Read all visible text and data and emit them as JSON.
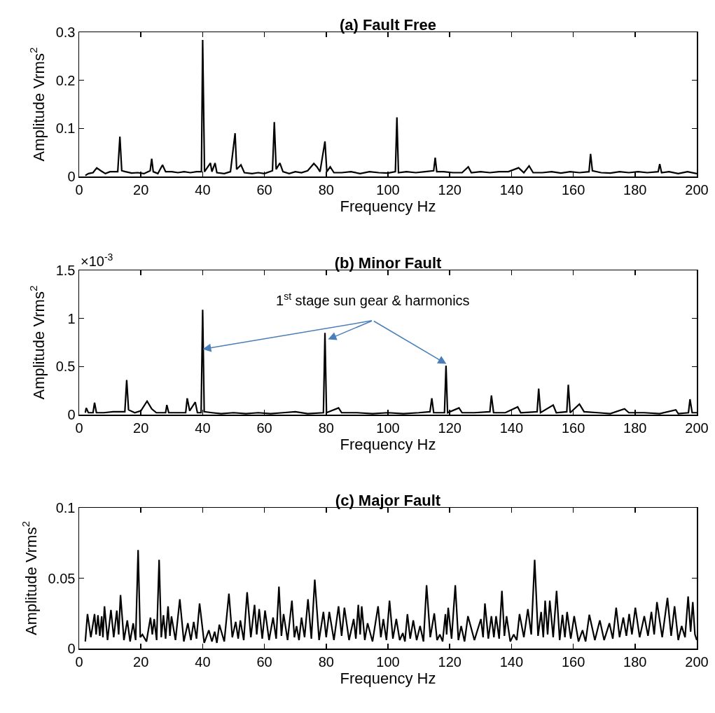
{
  "chart_data": [
    {
      "type": "line",
      "title": "(a) Fault Free",
      "xlabel": "Frequency Hz",
      "ylabel": "Amplitude Vrms$^{2}$",
      "xlim": [
        0,
        200
      ],
      "xticks": [
        0,
        20,
        40,
        60,
        80,
        100,
        120,
        140,
        160,
        180,
        200
      ],
      "ylim": [
        0,
        0.3
      ],
      "yticks": [
        0,
        0.1,
        0.2,
        0.3
      ],
      "series": [
        {
          "color": "#000000",
          "x": [
            2,
            3,
            4.5,
            5.7,
            7,
            8.5,
            10,
            12.5,
            13.2,
            13.8,
            15,
            17,
            19,
            21,
            23,
            23.5,
            24,
            25.5,
            27,
            28,
            30,
            32,
            34,
            36,
            38,
            39.6,
            40,
            40.6,
            42.5,
            43,
            44,
            44.6,
            47,
            49,
            50.5,
            51,
            52.4,
            53.5,
            56,
            58,
            60,
            62.6,
            63.2,
            63.8,
            65,
            66,
            68,
            70,
            72,
            74,
            76,
            77,
            78,
            79.6,
            80.2,
            81.3,
            82.5,
            85,
            88,
            91,
            94,
            97,
            100,
            102.4,
            102.9,
            103.4,
            106,
            109,
            112,
            114.8,
            115.3,
            115.8,
            118,
            121,
            124,
            126,
            127,
            130,
            133,
            136,
            139,
            142.3,
            144,
            145.7,
            147,
            150,
            153,
            156,
            159,
            162,
            165.1,
            165.6,
            166.2,
            169,
            172,
            175,
            178,
            181,
            184,
            187.5,
            188,
            188.6,
            191,
            194,
            197,
            200
          ],
          "values": [
            0.002,
            0.006,
            0.008,
            0.018,
            0.012,
            0.006,
            0.01,
            0.01,
            0.083,
            0.012,
            0.01,
            0.007,
            0.008,
            0.006,
            0.012,
            0.037,
            0.01,
            0.006,
            0.024,
            0.01,
            0.01,
            0.008,
            0.01,
            0.008,
            0.01,
            0.01,
            0.284,
            0.01,
            0.028,
            0.01,
            0.028,
            0.008,
            0.006,
            0.01,
            0.09,
            0.015,
            0.024,
            0.008,
            0.006,
            0.008,
            0.006,
            0.012,
            0.113,
            0.015,
            0.028,
            0.01,
            0.006,
            0.01,
            0.008,
            0.012,
            0.027,
            0.02,
            0.01,
            0.073,
            0.01,
            0.02,
            0.008,
            0.008,
            0.01,
            0.006,
            0.01,
            0.008,
            0.007,
            0.01,
            0.123,
            0.008,
            0.01,
            0.008,
            0.01,
            0.012,
            0.039,
            0.01,
            0.01,
            0.008,
            0.008,
            0.02,
            0.008,
            0.01,
            0.008,
            0.01,
            0.01,
            0.018,
            0.008,
            0.022,
            0.008,
            0.008,
            0.01,
            0.007,
            0.01,
            0.008,
            0.01,
            0.047,
            0.012,
            0.008,
            0.007,
            0.01,
            0.008,
            0.01,
            0.008,
            0.01,
            0.026,
            0.008,
            0.01,
            0.006,
            0.01,
            0.006
          ]
        }
      ]
    },
    {
      "type": "line",
      "title": "(b) Minor Fault",
      "xlabel": "Frequency Hz",
      "ylabel": "Amplitude Vrms$^{2}$",
      "xlim": [
        0,
        200
      ],
      "xticks": [
        0,
        20,
        40,
        60,
        80,
        100,
        120,
        140,
        160,
        180,
        200
      ],
      "ylim": [
        0,
        1.5
      ],
      "yticks": [
        0,
        0.5,
        1,
        1.5
      ],
      "annotations": [
        "×10$^{-3}$",
        {
          "text": "1$^{st}$ stage sun gear & harmonics",
          "x": 40,
          "y": 0.68
        }
      ],
      "series": [
        {
          "color": "#000000",
          "x": [
            2,
            2.3,
            3,
            4.5,
            5,
            5.6,
            8,
            11,
            14.8,
            15.4,
            16,
            18,
            20,
            22,
            23.5,
            25,
            28,
            28.4,
            29,
            32,
            34.5,
            35,
            35.8,
            37.6,
            38.3,
            39.5,
            40,
            40.5,
            43,
            46,
            50,
            54,
            58,
            62,
            66,
            70,
            74,
            79.1,
            79.6,
            80.1,
            84,
            85,
            90,
            95,
            100,
            105,
            110,
            113.6,
            114.2,
            114.8,
            118.3,
            118.8,
            119.3,
            123,
            124,
            128,
            133,
            133.5,
            134.2,
            138,
            142,
            143,
            148.3,
            148.8,
            149.4,
            153.5,
            154.5,
            157.9,
            158.4,
            159,
            162,
            163.5,
            168,
            172,
            176.6,
            178,
            183,
            188,
            193.2,
            194,
            197.3,
            197.8,
            198.5,
            200
          ],
          "values": [
            0.02,
            0.07,
            0.02,
            0.02,
            0.125,
            0.02,
            0.02,
            0.03,
            0.03,
            0.36,
            0.05,
            0.02,
            0.04,
            0.14,
            0.06,
            0.02,
            0.02,
            0.1,
            0.02,
            0.02,
            0.02,
            0.17,
            0.04,
            0.13,
            0.02,
            0.02,
            1.09,
            0.03,
            0.02,
            0.01,
            0.02,
            0.01,
            0.02,
            0.01,
            0.02,
            0.03,
            0.01,
            0.02,
            0.85,
            0.02,
            0.07,
            0.02,
            0.02,
            0.01,
            0.02,
            0.01,
            0.02,
            0.03,
            0.17,
            0.02,
            0.02,
            0.51,
            0.02,
            0.07,
            0.02,
            0.02,
            0.03,
            0.2,
            0.02,
            0.02,
            0.08,
            0.02,
            0.03,
            0.27,
            0.02,
            0.1,
            0.02,
            0.03,
            0.31,
            0.02,
            0.11,
            0.03,
            0.02,
            0.01,
            0.06,
            0.02,
            0.02,
            0.01,
            0.05,
            0.01,
            0.02,
            0.16,
            0.02,
            0.02
          ]
        }
      ]
    },
    {
      "type": "line",
      "title": "(c) Major Fault",
      "xlabel": "Frequency Hz",
      "ylabel": "Amplitude Vrms$^{2}$",
      "xlim": [
        0,
        200
      ],
      "xticks": [
        0,
        20,
        40,
        60,
        80,
        100,
        120,
        140,
        160,
        180,
        200
      ],
      "ylim": [
        0,
        0.1
      ],
      "yticks": [
        0,
        0.05,
        0.1
      ],
      "series": [
        {
          "color": "#000000",
          "x": [
            2,
            2.7,
            3.8,
            5.0,
            5.5,
            6.1,
            6.7,
            7.3,
            7.7,
            8.2,
            9.2,
            10.3,
            11.2,
            12.2,
            12.8,
            13.4,
            14.5,
            15.6,
            16.5,
            17.5,
            18.3,
            19.1,
            19.8,
            20.5,
            21.8,
            23.1,
            23.7,
            24.3,
            25.1,
            25.9,
            26.6,
            27.3,
            28.0,
            28.8,
            29.4,
            29.9,
            31.2,
            32.6,
            33.9,
            35.2,
            36.2,
            37.1,
            38,
            39.0,
            40.5,
            42.0,
            43,
            43.9,
            44.6,
            45.4,
            47,
            48.5,
            49.6,
            50.7,
            51.5,
            52.2,
            53.3,
            54.4,
            55.6,
            56.8,
            57.5,
            58.3,
            59.3,
            60.2,
            61.5,
            62.8,
            63.8,
            64.7,
            65.5,
            66.2,
            67.5,
            68.9,
            69.7,
            70.4,
            71.2,
            72.0,
            73,
            74.1,
            75.2,
            76.3,
            77.7,
            79.1,
            80,
            81.0,
            82.5,
            84.0,
            85,
            85.9,
            87.4,
            88.9,
            89.6,
            90.4,
            91,
            91.5,
            92.5,
            93.4,
            95,
            96.8,
            97.7,
            98.5,
            99.5,
            100.5,
            101.6,
            102.7,
            103.8,
            104.8,
            105.5,
            106.3,
            107.2,
            108.2,
            109.3,
            110.4,
            111.5,
            112.5,
            113.7,
            115.0,
            115.9,
            116.8,
            117.7,
            118.6,
            119,
            119.5,
            120.6,
            121.8,
            122.8,
            123.7,
            124.8,
            125.9,
            128,
            130.1,
            130.8,
            131.4,
            132.5,
            133.5,
            134.3,
            135.0,
            136,
            136.9,
            137.7,
            138.4,
            139.6,
            140.7,
            141.7,
            142.6,
            144,
            145.3,
            146.4,
            147.5,
            148.6,
            149.6,
            150.3,
            150.9,
            151.7,
            152.4,
            153.5,
            154.6,
            155.6,
            156.5,
            157.3,
            158.0,
            159.2,
            160.3,
            161.7,
            163.0,
            164,
            165.2,
            167,
            168.6,
            170,
            171.7,
            172.8,
            173.9,
            175,
            176.2,
            177.2,
            178.1,
            179,
            180.1,
            181.5,
            183.0,
            184.2,
            185.3,
            186.2,
            187.1,
            188.8,
            190.5,
            191.7,
            192.8,
            194,
            195.1,
            196.2,
            197.2,
            198,
            198.7,
            199.4,
            200
          ],
          "values": [
            0.005,
            0.0245,
            0.008,
            0.0245,
            0.01,
            0.0237,
            0.009,
            0.0229,
            0.008,
            0.03,
            0.006,
            0.0274,
            0.008,
            0.027,
            0.01,
            0.038,
            0.006,
            0.02,
            0.005,
            0.018,
            0.006,
            0.07,
            0.008,
            0.01,
            0.005,
            0.022,
            0.01,
            0.021,
            0.006,
            0.063,
            0.008,
            0.0237,
            0.007,
            0.03,
            0.009,
            0.0229,
            0.006,
            0.035,
            0.005,
            0.018,
            0.006,
            0.019,
            0.007,
            0.032,
            0.004,
            0.013,
            0.005,
            0.012,
            0.004,
            0.017,
            0.005,
            0.039,
            0.008,
            0.019,
            0.007,
            0.02,
            0.006,
            0.04,
            0.008,
            0.031,
            0.01,
            0.028,
            0.007,
            0.027,
            0.006,
            0.022,
            0.007,
            0.044,
            0.009,
            0.0245,
            0.006,
            0.034,
            0.008,
            0.016,
            0.006,
            0.022,
            0.008,
            0.035,
            0.007,
            0.049,
            0.006,
            0.026,
            0.008,
            0.026,
            0.006,
            0.03,
            0.009,
            0.029,
            0.006,
            0.021,
            0.007,
            0.031,
            0.01,
            0.03,
            0.006,
            0.018,
            0.005,
            0.03,
            0.008,
            0.021,
            0.006,
            0.034,
            0.007,
            0.021,
            0.006,
            0.011,
            0.005,
            0.0245,
            0.007,
            0.02,
            0.006,
            0.016,
            0.005,
            0.045,
            0.008,
            0.025,
            0.006,
            0.01,
            0.005,
            0.0245,
            0.01,
            0.029,
            0.007,
            0.045,
            0.006,
            0.016,
            0.005,
            0.023,
            0.006,
            0.021,
            0.008,
            0.032,
            0.007,
            0.023,
            0.008,
            0.023,
            0.007,
            0.041,
            0.009,
            0.023,
            0.005,
            0.01,
            0.006,
            0.0245,
            0.008,
            0.028,
            0.01,
            0.063,
            0.009,
            0.026,
            0.008,
            0.034,
            0.01,
            0.034,
            0.008,
            0.041,
            0.006,
            0.024,
            0.008,
            0.026,
            0.007,
            0.023,
            0.005,
            0.013,
            0.005,
            0.024,
            0.006,
            0.02,
            0.006,
            0.018,
            0.007,
            0.029,
            0.008,
            0.022,
            0.009,
            0.0245,
            0.01,
            0.029,
            0.008,
            0.023,
            0.009,
            0.026,
            0.01,
            0.033,
            0.008,
            0.036,
            0.009,
            0.03,
            0.006,
            0.016,
            0.008,
            0.037,
            0.012,
            0.033,
            0.01,
            0.006
          ]
        }
      ]
    }
  ]
}
